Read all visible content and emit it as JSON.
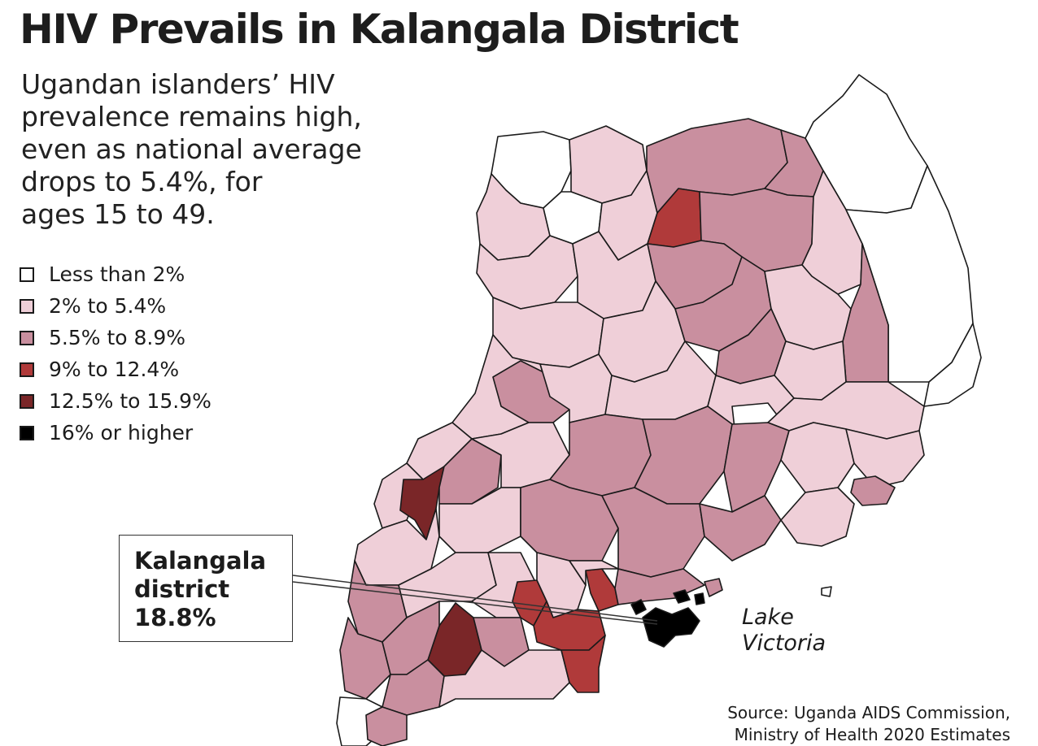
{
  "title": "HIV Prevails in Kalangala District",
  "subtitle_lines": [
    "Ugandan islanders’ HIV",
    "prevalence remains high,",
    "even as national average",
    "drops to 5.4%, for",
    "ages 15 to 49."
  ],
  "legend": [
    {
      "label": "Less than 2%",
      "color": "#ffffff"
    },
    {
      "label": "2% to 5.4%",
      "color": "#efcfd8"
    },
    {
      "label": "5.5% to 8.9%",
      "color": "#c98f9f"
    },
    {
      "label": "9% to 12.4%",
      "color": "#b03a3a"
    },
    {
      "label": "12.5% to 15.9%",
      "color": "#7a2628"
    },
    {
      "label": "16% or higher",
      "color": "#000000"
    }
  ],
  "callout": {
    "lines": [
      "Kalangala",
      "district",
      "18.8%"
    ]
  },
  "map": {
    "lake_label_lines": [
      "Lake",
      "Victoria"
    ],
    "highlighted_district": "Kalangala",
    "highlighted_value_pct": 18.8,
    "highlighted_category": "16% or higher"
  },
  "source_lines": [
    "Source: Uganda AIDS Commission,",
    "Ministry of Health 2020 Estimates"
  ]
}
